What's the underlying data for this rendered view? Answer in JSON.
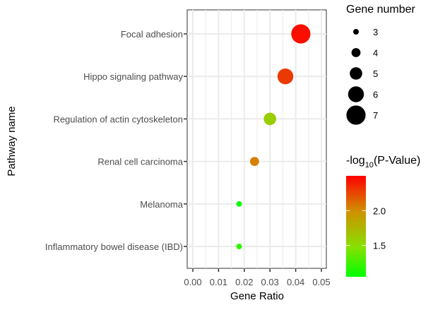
{
  "chart_data": {
    "type": "scatter",
    "xlabel": "Gene Ratio",
    "ylabel": "Pathway name",
    "xlim": [
      0.0,
      0.05
    ],
    "x_ticks": [
      "0.00",
      "0.01",
      "0.02",
      "0.03",
      "0.04",
      "0.05"
    ],
    "x_tick_values": [
      0.0,
      0.01,
      0.02,
      0.03,
      0.04,
      0.05
    ],
    "grid": true,
    "categories": [
      "Focal adhesion",
      "Hippo signaling pathway",
      "Regulation of actin cytoskeleton",
      "Renal cell carcinoma",
      "Melanoma",
      "Inflammatory bowel disease (IBD)"
    ],
    "points": [
      {
        "pathway": "Focal adhesion",
        "gene_ratio": 0.042,
        "gene_number": 7,
        "neg_log10_p": 2.45
      },
      {
        "pathway": "Hippo signaling pathway",
        "gene_ratio": 0.036,
        "gene_number": 6,
        "neg_log10_p": 2.3
      },
      {
        "pathway": "Regulation of actin cytoskeleton",
        "gene_ratio": 0.03,
        "gene_number": 5,
        "neg_log10_p": 1.6
      },
      {
        "pathway": "Renal cell carcinoma",
        "gene_ratio": 0.024,
        "gene_number": 4,
        "neg_log10_p": 2.05
      },
      {
        "pathway": "Melanoma",
        "gene_ratio": 0.018,
        "gene_number": 3,
        "neg_log10_p": 1.1
      },
      {
        "pathway": "Inflammatory bowel disease (IBD)",
        "gene_ratio": 0.018,
        "gene_number": 3,
        "neg_log10_p": 1.2
      }
    ],
    "size_legend": {
      "title": "Gene number",
      "values": [
        3,
        4,
        5,
        6,
        7
      ],
      "labels": [
        "3",
        "4",
        "5",
        "6",
        "7"
      ]
    },
    "color_legend": {
      "title_main": "-log",
      "title_sub": "10",
      "title_rest": "(P-Value)",
      "range": [
        1.05,
        2.5
      ],
      "ticks": [
        1.5,
        2.0
      ],
      "tick_labels": [
        "1.5",
        "2.0"
      ],
      "low_color": "#00ff00",
      "high_color": "#ff0000"
    },
    "legend_position": "right"
  }
}
